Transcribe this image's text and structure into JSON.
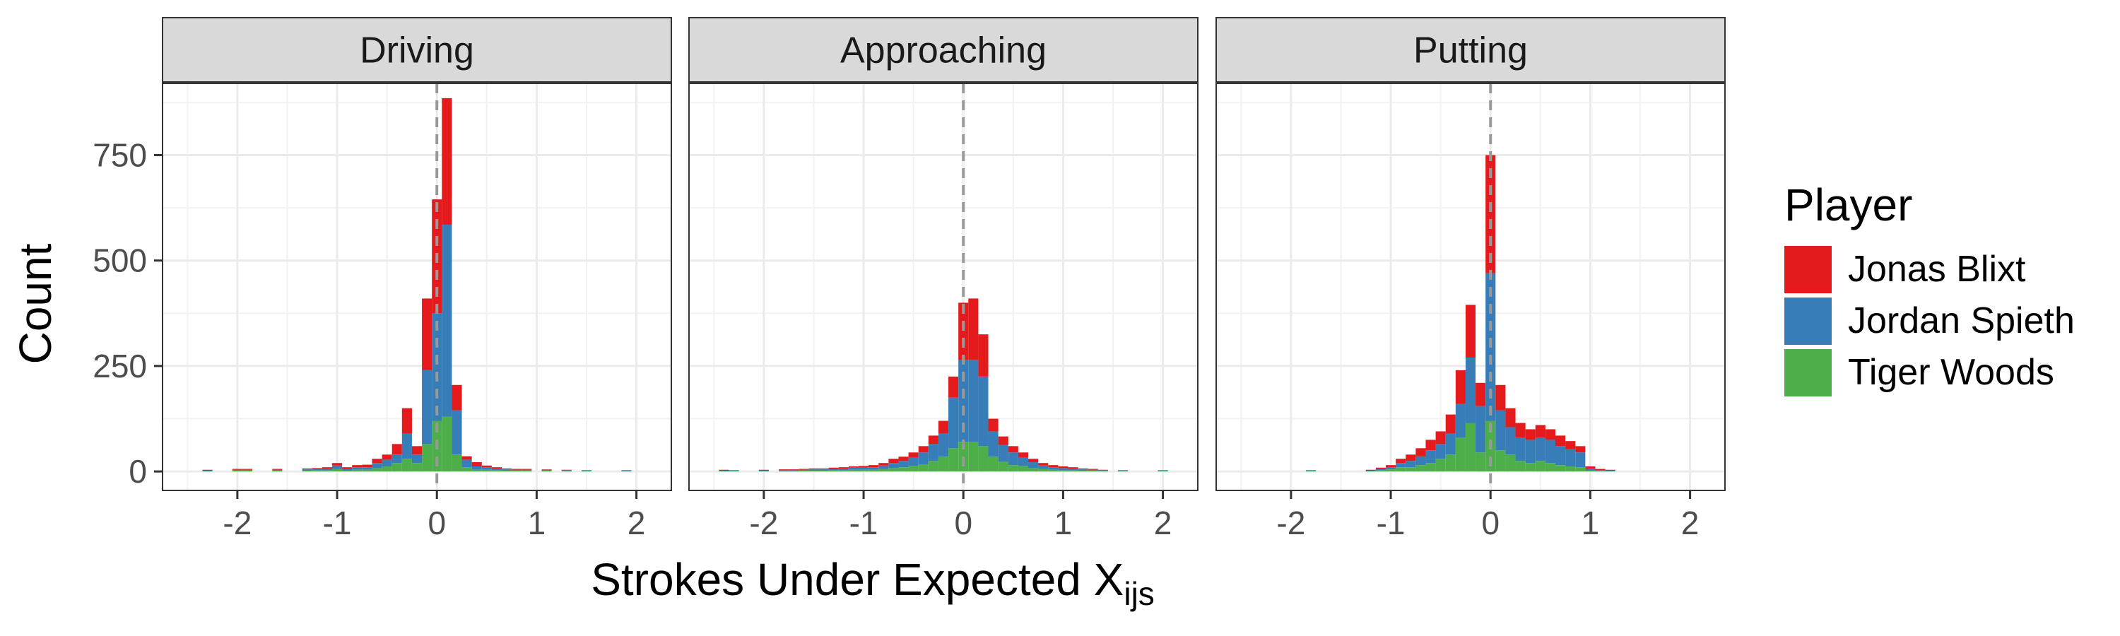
{
  "chart_data": {
    "type": "bar",
    "subtype": "stacked-histogram-faceted",
    "xlabel": "Strokes Under Expected X",
    "xlabel_subscript": "ijs",
    "ylabel": "Count",
    "xlim": [
      -2.75,
      2.35
    ],
    "ylim": [
      -45,
      920
    ],
    "x_ticks": [
      -2,
      -1,
      0,
      1,
      2
    ],
    "x_tick_labels": [
      "-2",
      "-1",
      "0",
      "1",
      "2"
    ],
    "y_ticks": [
      0,
      250,
      500,
      750
    ],
    "y_tick_labels": [
      "0",
      "250",
      "500",
      "750"
    ],
    "bin_width": 0.1,
    "reference_line_x": 0,
    "grid": true,
    "legend": {
      "title": "Player",
      "position": "right",
      "entries": [
        "Jonas Blixt",
        "Jordan Spieth",
        "Tiger Woods"
      ]
    },
    "series_colors": {
      "Jonas Blixt": "#E41A1C",
      "Jordan Spieth": "#377EB8",
      "Tiger Woods": "#4DAF4A"
    },
    "facets": [
      {
        "name": "Driving",
        "bins": [
          {
            "x": -2.3,
            "Jonas Blixt": 2,
            "Jordan Spieth": 1,
            "Tiger Woods": 1
          },
          {
            "x": -2.0,
            "Jonas Blixt": 2,
            "Jordan Spieth": 2,
            "Tiger Woods": 2
          },
          {
            "x": -1.9,
            "Jonas Blixt": 2,
            "Jordan Spieth": 2,
            "Tiger Woods": 2
          },
          {
            "x": -1.6,
            "Jonas Blixt": 2,
            "Jordan Spieth": 2,
            "Tiger Woods": 2
          },
          {
            "x": -1.3,
            "Jonas Blixt": 2,
            "Jordan Spieth": 3,
            "Tiger Woods": 2
          },
          {
            "x": -1.2,
            "Jonas Blixt": 2,
            "Jordan Spieth": 3,
            "Tiger Woods": 3
          },
          {
            "x": -1.1,
            "Jonas Blixt": 3,
            "Jordan Spieth": 4,
            "Tiger Woods": 3
          },
          {
            "x": -1.0,
            "Jonas Blixt": 6,
            "Jordan Spieth": 8,
            "Tiger Woods": 6
          },
          {
            "x": -0.9,
            "Jonas Blixt": 4,
            "Jordan Spieth": 4,
            "Tiger Woods": 2
          },
          {
            "x": -0.8,
            "Jonas Blixt": 5,
            "Jordan Spieth": 6,
            "Tiger Woods": 4
          },
          {
            "x": -0.7,
            "Jonas Blixt": 6,
            "Jordan Spieth": 6,
            "Tiger Woods": 4
          },
          {
            "x": -0.6,
            "Jonas Blixt": 10,
            "Jordan Spieth": 12,
            "Tiger Woods": 8
          },
          {
            "x": -0.5,
            "Jonas Blixt": 12,
            "Jordan Spieth": 16,
            "Tiger Woods": 12
          },
          {
            "x": -0.4,
            "Jonas Blixt": 25,
            "Jordan Spieth": 20,
            "Tiger Woods": 20
          },
          {
            "x": -0.3,
            "Jonas Blixt": 60,
            "Jordan Spieth": 60,
            "Tiger Woods": 30
          },
          {
            "x": -0.2,
            "Jonas Blixt": 20,
            "Jordan Spieth": 20,
            "Tiger Woods": 20
          },
          {
            "x": -0.1,
            "Jonas Blixt": 170,
            "Jordan Spieth": 175,
            "Tiger Woods": 65
          },
          {
            "x": 0.0,
            "Jonas Blixt": 270,
            "Jordan Spieth": 255,
            "Tiger Woods": 120
          },
          {
            "x": 0.1,
            "Jonas Blixt": 300,
            "Jordan Spieth": 455,
            "Tiger Woods": 130
          },
          {
            "x": 0.2,
            "Jonas Blixt": 60,
            "Jordan Spieth": 105,
            "Tiger Woods": 40
          },
          {
            "x": 0.3,
            "Jonas Blixt": 8,
            "Jordan Spieth": 18,
            "Tiger Woods": 10
          },
          {
            "x": 0.4,
            "Jonas Blixt": 10,
            "Jordan Spieth": 8,
            "Tiger Woods": 4
          },
          {
            "x": 0.5,
            "Jonas Blixt": 4,
            "Jordan Spieth": 6,
            "Tiger Woods": 4
          },
          {
            "x": 0.6,
            "Jonas Blixt": 3,
            "Jordan Spieth": 4,
            "Tiger Woods": 3
          },
          {
            "x": 0.7,
            "Jonas Blixt": 2,
            "Jordan Spieth": 3,
            "Tiger Woods": 2
          },
          {
            "x": 0.8,
            "Jonas Blixt": 2,
            "Jordan Spieth": 2,
            "Tiger Woods": 2
          },
          {
            "x": 0.9,
            "Jonas Blixt": 2,
            "Jordan Spieth": 2,
            "Tiger Woods": 2
          },
          {
            "x": 1.1,
            "Jonas Blixt": 1,
            "Jordan Spieth": 2,
            "Tiger Woods": 2
          },
          {
            "x": 1.3,
            "Jonas Blixt": 1,
            "Jordan Spieth": 2,
            "Tiger Woods": 1
          },
          {
            "x": 1.5,
            "Jonas Blixt": 1,
            "Jordan Spieth": 1,
            "Tiger Woods": 1
          },
          {
            "x": 1.9,
            "Jonas Blixt": 1,
            "Jordan Spieth": 1,
            "Tiger Woods": 1
          }
        ]
      },
      {
        "name": "Approaching",
        "bins": [
          {
            "x": -2.4,
            "Jonas Blixt": 2,
            "Jordan Spieth": 1,
            "Tiger Woods": 1
          },
          {
            "x": -2.3,
            "Jonas Blixt": 1,
            "Jordan Spieth": 1,
            "Tiger Woods": 1
          },
          {
            "x": -2.0,
            "Jonas Blixt": 2,
            "Jordan Spieth": 1,
            "Tiger Woods": 1
          },
          {
            "x": -1.8,
            "Jonas Blixt": 2,
            "Jordan Spieth": 2,
            "Tiger Woods": 1
          },
          {
            "x": -1.7,
            "Jonas Blixt": 2,
            "Jordan Spieth": 2,
            "Tiger Woods": 1
          },
          {
            "x": -1.6,
            "Jonas Blixt": 2,
            "Jordan Spieth": 2,
            "Tiger Woods": 2
          },
          {
            "x": -1.5,
            "Jonas Blixt": 2,
            "Jordan Spieth": 3,
            "Tiger Woods": 2
          },
          {
            "x": -1.4,
            "Jonas Blixt": 2,
            "Jordan Spieth": 3,
            "Tiger Woods": 2
          },
          {
            "x": -1.3,
            "Jonas Blixt": 3,
            "Jordan Spieth": 3,
            "Tiger Woods": 3
          },
          {
            "x": -1.2,
            "Jonas Blixt": 3,
            "Jordan Spieth": 4,
            "Tiger Woods": 3
          },
          {
            "x": -1.1,
            "Jonas Blixt": 3,
            "Jordan Spieth": 5,
            "Tiger Woods": 4
          },
          {
            "x": -1.0,
            "Jonas Blixt": 4,
            "Jordan Spieth": 5,
            "Tiger Woods": 4
          },
          {
            "x": -0.9,
            "Jonas Blixt": 5,
            "Jordan Spieth": 6,
            "Tiger Woods": 4
          },
          {
            "x": -0.8,
            "Jonas Blixt": 6,
            "Jordan Spieth": 8,
            "Tiger Woods": 6
          },
          {
            "x": -0.7,
            "Jonas Blixt": 10,
            "Jordan Spieth": 12,
            "Tiger Woods": 8
          },
          {
            "x": -0.6,
            "Jonas Blixt": 10,
            "Jordan Spieth": 15,
            "Tiger Woods": 10
          },
          {
            "x": -0.5,
            "Jonas Blixt": 12,
            "Jordan Spieth": 20,
            "Tiger Woods": 13
          },
          {
            "x": -0.4,
            "Jonas Blixt": 15,
            "Jordan Spieth": 28,
            "Tiger Woods": 17
          },
          {
            "x": -0.3,
            "Jonas Blixt": 20,
            "Jordan Spieth": 40,
            "Tiger Woods": 25
          },
          {
            "x": -0.2,
            "Jonas Blixt": 30,
            "Jordan Spieth": 55,
            "Tiger Woods": 35
          },
          {
            "x": -0.1,
            "Jonas Blixt": 50,
            "Jordan Spieth": 120,
            "Tiger Woods": 55
          },
          {
            "x": 0.0,
            "Jonas Blixt": 135,
            "Jordan Spieth": 195,
            "Tiger Woods": 70
          },
          {
            "x": 0.1,
            "Jonas Blixt": 145,
            "Jordan Spieth": 195,
            "Tiger Woods": 70
          },
          {
            "x": 0.2,
            "Jonas Blixt": 100,
            "Jordan Spieth": 165,
            "Tiger Woods": 60
          },
          {
            "x": 0.3,
            "Jonas Blixt": 30,
            "Jordan Spieth": 60,
            "Tiger Woods": 35
          },
          {
            "x": 0.4,
            "Jonas Blixt": 20,
            "Jordan Spieth": 40,
            "Tiger Woods": 23
          },
          {
            "x": 0.5,
            "Jonas Blixt": 15,
            "Jordan Spieth": 30,
            "Tiger Woods": 15
          },
          {
            "x": 0.6,
            "Jonas Blixt": 12,
            "Jordan Spieth": 20,
            "Tiger Woods": 13
          },
          {
            "x": 0.7,
            "Jonas Blixt": 8,
            "Jordan Spieth": 14,
            "Tiger Woods": 8
          },
          {
            "x": 0.8,
            "Jonas Blixt": 6,
            "Jordan Spieth": 8,
            "Tiger Woods": 6
          },
          {
            "x": 0.9,
            "Jonas Blixt": 5,
            "Jordan Spieth": 6,
            "Tiger Woods": 4
          },
          {
            "x": 1.0,
            "Jonas Blixt": 4,
            "Jordan Spieth": 5,
            "Tiger Woods": 3
          },
          {
            "x": 1.1,
            "Jonas Blixt": 3,
            "Jordan Spieth": 4,
            "Tiger Woods": 3
          },
          {
            "x": 1.2,
            "Jonas Blixt": 2,
            "Jordan Spieth": 3,
            "Tiger Woods": 2
          },
          {
            "x": 1.3,
            "Jonas Blixt": 2,
            "Jordan Spieth": 2,
            "Tiger Woods": 2
          },
          {
            "x": 1.4,
            "Jonas Blixt": 1,
            "Jordan Spieth": 2,
            "Tiger Woods": 1
          },
          {
            "x": 1.6,
            "Jonas Blixt": 1,
            "Jordan Spieth": 1,
            "Tiger Woods": 1
          },
          {
            "x": 2.0,
            "Jonas Blixt": 1,
            "Jordan Spieth": 1,
            "Tiger Woods": 1
          }
        ]
      },
      {
        "name": "Putting",
        "bins": [
          {
            "x": -1.8,
            "Jonas Blixt": 1,
            "Jordan Spieth": 1,
            "Tiger Woods": 1
          },
          {
            "x": -1.2,
            "Jonas Blixt": 2,
            "Jordan Spieth": 1,
            "Tiger Woods": 1
          },
          {
            "x": -1.1,
            "Jonas Blixt": 3,
            "Jordan Spieth": 3,
            "Tiger Woods": 3
          },
          {
            "x": -1.0,
            "Jonas Blixt": 5,
            "Jordan Spieth": 5,
            "Tiger Woods": 5
          },
          {
            "x": -0.9,
            "Jonas Blixt": 10,
            "Jordan Spieth": 10,
            "Tiger Woods": 10
          },
          {
            "x": -0.8,
            "Jonas Blixt": 15,
            "Jordan Spieth": 15,
            "Tiger Woods": 10
          },
          {
            "x": -0.7,
            "Jonas Blixt": 20,
            "Jordan Spieth": 20,
            "Tiger Woods": 15
          },
          {
            "x": -0.6,
            "Jonas Blixt": 25,
            "Jordan Spieth": 30,
            "Tiger Woods": 20
          },
          {
            "x": -0.5,
            "Jonas Blixt": 30,
            "Jordan Spieth": 35,
            "Tiger Woods": 30
          },
          {
            "x": -0.4,
            "Jonas Blixt": 45,
            "Jordan Spieth": 50,
            "Tiger Woods": 40
          },
          {
            "x": -0.3,
            "Jonas Blixt": 80,
            "Jordan Spieth": 80,
            "Tiger Woods": 80
          },
          {
            "x": -0.2,
            "Jonas Blixt": 125,
            "Jordan Spieth": 155,
            "Tiger Woods": 115
          },
          {
            "x": -0.1,
            "Jonas Blixt": 55,
            "Jordan Spieth": 110,
            "Tiger Woods": 45
          },
          {
            "x": 0.0,
            "Jonas Blixt": 280,
            "Jordan Spieth": 350,
            "Tiger Woods": 120
          },
          {
            "x": 0.1,
            "Jonas Blixt": 60,
            "Jordan Spieth": 95,
            "Tiger Woods": 50
          },
          {
            "x": 0.2,
            "Jonas Blixt": 45,
            "Jordan Spieth": 65,
            "Tiger Woods": 40
          },
          {
            "x": 0.3,
            "Jonas Blixt": 35,
            "Jordan Spieth": 55,
            "Tiger Woods": 25
          },
          {
            "x": 0.4,
            "Jonas Blixt": 25,
            "Jordan Spieth": 55,
            "Tiger Woods": 20
          },
          {
            "x": 0.5,
            "Jonas Blixt": 30,
            "Jordan Spieth": 55,
            "Tiger Woods": 25
          },
          {
            "x": 0.6,
            "Jonas Blixt": 25,
            "Jordan Spieth": 55,
            "Tiger Woods": 20
          },
          {
            "x": 0.7,
            "Jonas Blixt": 25,
            "Jordan Spieth": 45,
            "Tiger Woods": 15
          },
          {
            "x": 0.8,
            "Jonas Blixt": 20,
            "Jordan Spieth": 40,
            "Tiger Woods": 12
          },
          {
            "x": 0.9,
            "Jonas Blixt": 15,
            "Jordan Spieth": 35,
            "Tiger Woods": 10
          },
          {
            "x": 1.0,
            "Jonas Blixt": 5,
            "Jordan Spieth": 5,
            "Tiger Woods": 2
          },
          {
            "x": 1.1,
            "Jonas Blixt": 3,
            "Jordan Spieth": 2,
            "Tiger Woods": 1
          },
          {
            "x": 1.2,
            "Jonas Blixt": 2,
            "Jordan Spieth": 1,
            "Tiger Woods": 1
          }
        ]
      }
    ]
  }
}
